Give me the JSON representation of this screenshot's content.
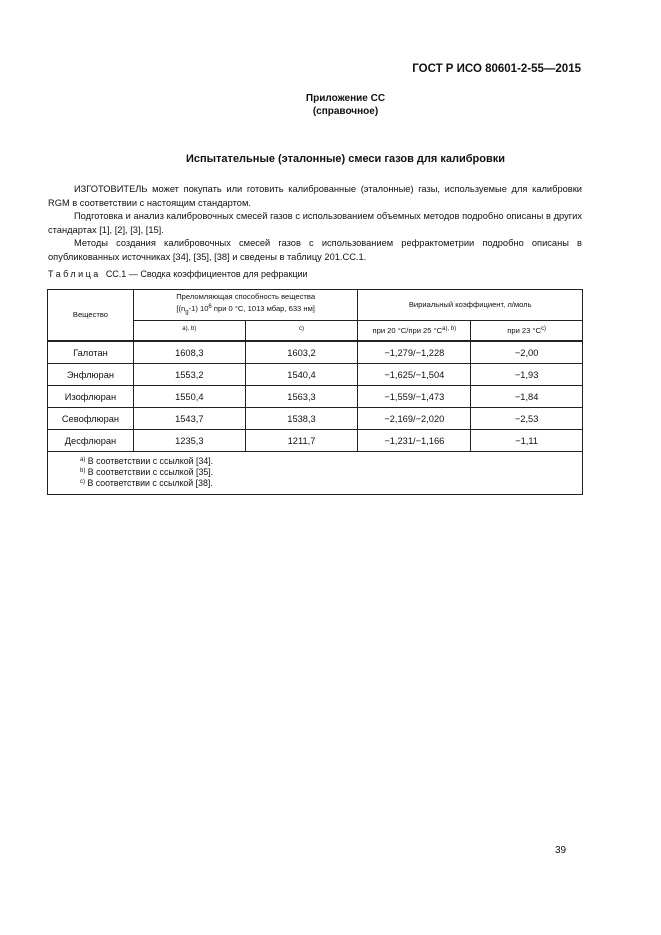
{
  "header": {
    "doc_id": "ГОСТ Р ИСО 80601-2-55—2015"
  },
  "appendix": {
    "title": "Приложение СС",
    "subtitle": "(справочное)"
  },
  "section_title": "Испытательные (эталонные) смеси газов для калибровки",
  "paragraphs": [
    "ИЗГОТОВИТЕЛЬ может покупать или готовить калиброванные (эталонные) газы, используемые для калибровки RGM в соответствии с настоящим стандартом.",
    "Подготовка и анализ калибровочных смесей газов с использованием объемных методов подробно описаны в других стандартах [1], [2], [3], [15].",
    "Методы создания калибровочных смесей газов с использованием рефрактометрии подробно описаны в опубликованных источниках [34], [35], [38] и сведены в таблицу 201.СС.1."
  ],
  "table": {
    "caption_prefix": "Таблица",
    "caption_rest": "СС.1 — Сводка коэффициентов для рефракции",
    "col_substance": "Вещество",
    "col_refr_line1": "Преломляющая способность вещества",
    "col_refr_line2a": "[(n",
    "col_refr_sub": "g",
    "col_refr_line2b": "-1)   10",
    "col_refr_sup": "6",
    "col_refr_line2c": " при 0 °C, 1013 мбар, 633 нм]",
    "col_virial": "Вириальный коэффициент, л/моль",
    "sub_a": "a), b)",
    "sub_c": "c)",
    "sub_virial1": "при 20 °C/при 25 °C",
    "sub_virial1_sup": "a), b)",
    "sub_virial2": "при 23 °C",
    "sub_virial2_sup": "c)",
    "rows": [
      [
        "Галотан",
        "1608,3",
        "1603,2",
        "−1,279/−1,228",
        "−2,00"
      ],
      [
        "Энфлюран",
        "1553,2",
        "1540,4",
        "−1,625/−1,504",
        "−1,93"
      ],
      [
        "Изофлюран",
        "1550,4",
        "1563,3",
        "−1,559/−1,473",
        "−1,84"
      ],
      [
        "Севофлюран",
        "1543,7",
        "1538,3",
        "−2,169/−2,020",
        "−2,53"
      ],
      [
        "Десфлюран",
        "1235,3",
        "1211,7",
        "−1,231/−1,166",
        "−1,11"
      ]
    ],
    "footnotes": [
      {
        "mark": "a)",
        "text": "В соответствии с ссылкой [34]."
      },
      {
        "mark": "b)",
        "text": "В соответствии с ссылкой [35]."
      },
      {
        "mark": "c)",
        "text": "В соответствии с ссылкой [38]."
      }
    ]
  },
  "page_number": "39"
}
